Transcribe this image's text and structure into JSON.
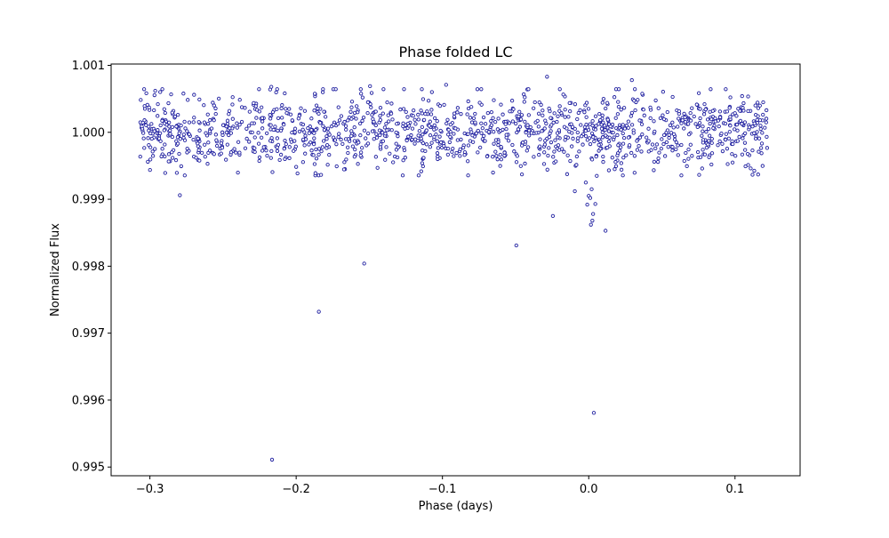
{
  "chart_data": {
    "type": "scatter",
    "title": "Phase folded LC",
    "xlabel": "Phase (days)",
    "ylabel": "Normalized Flux",
    "xlim": [
      -0.3265,
      0.1445
    ],
    "ylim": [
      0.99487,
      1.00102
    ],
    "x_ticks": [
      "−0.3",
      "−0.2",
      "−0.1",
      "0.0",
      "0.1"
    ],
    "x_tick_values": [
      -0.3,
      -0.2,
      -0.1,
      0.0,
      0.1
    ],
    "y_ticks": [
      "0.995",
      "0.996",
      "0.997",
      "0.998",
      "0.999",
      "1.000",
      "1.001"
    ],
    "y_tick_values": [
      0.995,
      0.996,
      0.997,
      0.998,
      0.999,
      1.0,
      1.001
    ],
    "grid": false,
    "marker": {
      "edge_color": "#1f1fa0",
      "face_color": "#ffffff"
    },
    "series": [
      {
        "x_range": [
          -0.307,
          0.122
        ],
        "baseline": 1.0,
        "scatter_sigma": 0.00028,
        "approx_count": 1400,
        "outliers": [
          {
            "x": -0.2165,
            "y": 0.99511
          },
          {
            "x": -0.1845,
            "y": 0.99732
          },
          {
            "x": -0.1535,
            "y": 0.99804
          },
          {
            "x": -0.2795,
            "y": 0.99906
          },
          {
            "x": -0.0495,
            "y": 0.99831
          },
          {
            "x": 0.0035,
            "y": 0.99581
          },
          {
            "x": -0.0245,
            "y": 0.99875
          },
          {
            "x": 0.0115,
            "y": 0.99853
          },
          {
            "x": 0.0015,
            "y": 0.99862
          },
          {
            "x": 0.0025,
            "y": 0.99868
          },
          {
            "x": 0.0,
            "y": 0.99905
          },
          {
            "x": -0.001,
            "y": 0.99892
          },
          {
            "x": 0.001,
            "y": 0.99902
          },
          {
            "x": 0.002,
            "y": 0.99915
          },
          {
            "x": 0.0045,
            "y": 0.99893
          },
          {
            "x": -0.002,
            "y": 0.99925
          },
          {
            "x": 0.003,
            "y": 0.99878
          },
          {
            "x": -0.0095,
            "y": 0.99912
          },
          {
            "x": 0.0055,
            "y": 0.99935
          },
          {
            "x": -0.217,
            "y": 1.00068
          },
          {
            "x": -0.0285,
            "y": 1.00083
          },
          {
            "x": 0.0295,
            "y": 1.00078
          },
          {
            "x": -0.0975,
            "y": 1.00071
          },
          {
            "x": -0.1495,
            "y": 1.00069
          }
        ]
      }
    ]
  }
}
